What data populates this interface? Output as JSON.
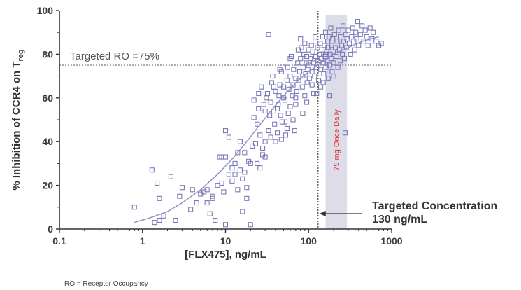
{
  "colors": {
    "marker": "#7b79b8",
    "fit_line": "#8c8ac4",
    "band": "#dcdde8",
    "band_label": "#e0302a",
    "axis": "#333333",
    "reference_line": "#777777"
  },
  "icons": {
    "arrow": "arrow-left-icon"
  },
  "chart_data": {
    "type": "scatter",
    "xscale": "log",
    "xlabel": "[FLX475], ng/mL",
    "ylabel_prefix": "% Inhibition of  CCR4 on T",
    "ylabel_sub": "reg",
    "xlim": [
      0.1,
      1000
    ],
    "ylim": [
      0,
      100
    ],
    "x_ticks": [
      0.1,
      1,
      10,
      100,
      1000
    ],
    "x_tick_labels": [
      "0.1",
      "1",
      "10",
      "100",
      "1000"
    ],
    "y_ticks": [
      0,
      20,
      40,
      60,
      80,
      100
    ],
    "y_tick_labels": [
      "0",
      "20",
      "40",
      "60",
      "80",
      "100"
    ],
    "grid": false,
    "reference_line": {
      "y": 75,
      "label": "Targeted RO =75%"
    },
    "target_concentration": {
      "x": 130,
      "label_line1": "Targeted Concentration",
      "label_line2": "130 ng/mL"
    },
    "dose_band": {
      "x_range": [
        160,
        290
      ],
      "label": "75 mg Once Daily"
    },
    "fit_curve": [
      [
        0.8,
        3
      ],
      [
        1.2,
        5
      ],
      [
        2,
        8
      ],
      [
        3,
        12
      ],
      [
        5,
        18
      ],
      [
        8,
        25
      ],
      [
        12,
        32
      ],
      [
        18,
        40
      ],
      [
        25,
        47
      ],
      [
        35,
        54
      ],
      [
        50,
        61
      ],
      [
        70,
        67
      ],
      [
        100,
        72
      ],
      [
        140,
        76
      ],
      [
        200,
        80
      ],
      [
        300,
        83
      ],
      [
        450,
        86
      ],
      [
        700,
        88
      ]
    ],
    "points": [
      [
        0.8,
        10
      ],
      [
        1.3,
        27
      ],
      [
        1.4,
        3
      ],
      [
        1.5,
        21
      ],
      [
        1.6,
        4
      ],
      [
        1.8,
        6
      ],
      [
        1.6,
        14
      ],
      [
        2.2,
        24
      ],
      [
        2.5,
        4
      ],
      [
        3.8,
        9
      ],
      [
        4.5,
        12
      ],
      [
        5.0,
        16
      ],
      [
        5.5,
        17
      ],
      [
        6.0,
        18
      ],
      [
        6.5,
        7
      ],
      [
        7.0,
        14
      ],
      [
        7.5,
        4
      ],
      [
        8.0,
        20
      ],
      [
        9.0,
        21
      ],
      [
        9.5,
        17
      ],
      [
        10,
        33
      ],
      [
        11,
        25
      ],
      [
        12,
        22
      ],
      [
        8.5,
        33
      ],
      [
        9,
        33
      ],
      [
        10,
        45
      ],
      [
        11,
        42
      ],
      [
        12,
        28
      ],
      [
        13,
        30
      ],
      [
        14,
        35
      ],
      [
        15,
        40
      ],
      [
        16,
        23
      ],
      [
        16,
        8
      ],
      [
        17,
        26
      ],
      [
        18,
        14
      ],
      [
        20,
        30
      ],
      [
        20,
        2
      ],
      [
        21,
        38
      ],
      [
        22,
        51
      ],
      [
        22,
        59
      ],
      [
        24,
        48
      ],
      [
        25,
        55
      ],
      [
        25,
        62
      ],
      [
        26,
        43
      ],
      [
        27,
        65
      ],
      [
        28,
        37
      ],
      [
        29,
        57
      ],
      [
        30,
        40
      ],
      [
        30,
        54
      ],
      [
        31,
        60
      ],
      [
        32,
        62
      ],
      [
        33,
        45
      ],
      [
        34,
        52
      ],
      [
        35,
        58
      ],
      [
        35,
        42
      ],
      [
        36,
        67
      ],
      [
        37,
        70
      ],
      [
        38,
        54
      ],
      [
        39,
        48
      ],
      [
        40,
        40
      ],
      [
        40,
        63
      ],
      [
        42,
        55
      ],
      [
        43,
        57
      ],
      [
        44,
        61
      ],
      [
        45,
        66
      ],
      [
        46,
        52
      ],
      [
        47,
        72
      ],
      [
        48,
        49
      ],
      [
        50,
        60
      ],
      [
        50,
        65
      ],
      [
        52,
        59
      ],
      [
        53,
        43
      ],
      [
        55,
        68
      ],
      [
        56,
        74
      ],
      [
        57,
        53
      ],
      [
        58,
        64
      ],
      [
        60,
        70
      ],
      [
        60,
        56
      ],
      [
        62,
        79
      ],
      [
        64,
        61
      ],
      [
        65,
        66
      ],
      [
        66,
        73
      ],
      [
        68,
        45
      ],
      [
        70,
        69
      ],
      [
        70,
        57
      ],
      [
        72,
        63
      ],
      [
        74,
        76
      ],
      [
        75,
        82
      ],
      [
        76,
        68
      ],
      [
        78,
        72
      ],
      [
        80,
        78
      ],
      [
        82,
        83
      ],
      [
        84,
        65
      ],
      [
        85,
        70
      ],
      [
        86,
        74
      ],
      [
        88,
        80
      ],
      [
        90,
        61
      ],
      [
        90,
        85
      ],
      [
        92,
        71
      ],
      [
        94,
        76
      ],
      [
        95,
        79
      ],
      [
        96,
        67
      ],
      [
        98,
        73
      ],
      [
        100,
        82
      ],
      [
        100,
        75
      ],
      [
        102,
        69
      ],
      [
        105,
        78
      ],
      [
        108,
        84
      ],
      [
        110,
        72
      ],
      [
        112,
        81
      ],
      [
        115,
        76
      ],
      [
        118,
        70
      ],
      [
        120,
        86
      ],
      [
        122,
        79
      ],
      [
        125,
        74
      ],
      [
        128,
        83
      ],
      [
        130,
        77
      ],
      [
        132,
        68
      ],
      [
        135,
        80
      ],
      [
        138,
        85
      ],
      [
        140,
        73
      ],
      [
        142,
        78
      ],
      [
        145,
        82
      ],
      [
        148,
        88
      ],
      [
        150,
        76
      ],
      [
        152,
        71
      ],
      [
        155,
        84
      ],
      [
        158,
        79
      ],
      [
        160,
        90
      ],
      [
        162,
        74
      ],
      [
        165,
        81
      ],
      [
        168,
        77
      ],
      [
        170,
        86
      ],
      [
        172,
        69
      ],
      [
        175,
        83
      ],
      [
        178,
        88
      ],
      [
        180,
        75
      ],
      [
        182,
        80
      ],
      [
        185,
        92
      ],
      [
        188,
        78
      ],
      [
        190,
        84
      ],
      [
        192,
        72
      ],
      [
        195,
        87
      ],
      [
        198,
        81
      ],
      [
        200,
        76
      ],
      [
        205,
        89
      ],
      [
        210,
        83
      ],
      [
        215,
        79
      ],
      [
        220,
        86
      ],
      [
        225,
        74
      ],
      [
        230,
        91
      ],
      [
        235,
        82
      ],
      [
        240,
        77
      ],
      [
        245,
        88
      ],
      [
        250,
        84
      ],
      [
        255,
        80
      ],
      [
        260,
        93
      ],
      [
        265,
        86
      ],
      [
        270,
        78
      ],
      [
        275,
        44
      ],
      [
        280,
        89
      ],
      [
        285,
        83
      ],
      [
        290,
        87
      ],
      [
        300,
        91
      ],
      [
        310,
        85
      ],
      [
        320,
        80
      ],
      [
        330,
        88
      ],
      [
        340,
        92
      ],
      [
        350,
        86
      ],
      [
        360,
        82
      ],
      [
        370,
        90
      ],
      [
        380,
        87
      ],
      [
        390,
        95
      ],
      [
        400,
        84
      ],
      [
        420,
        89
      ],
      [
        440,
        93
      ],
      [
        460,
        86
      ],
      [
        480,
        91
      ],
      [
        500,
        88
      ],
      [
        520,
        84
      ],
      [
        550,
        92
      ],
      [
        580,
        87
      ],
      [
        600,
        90
      ],
      [
        650,
        86
      ],
      [
        700,
        84
      ],
      [
        750,
        85
      ],
      [
        33,
        89
      ],
      [
        10,
        2
      ],
      [
        140,
        65
      ],
      [
        180,
        61
      ],
      [
        115,
        62
      ],
      [
        150,
        67
      ],
      [
        200,
        70
      ],
      [
        160,
        80
      ],
      [
        170,
        83
      ],
      [
        120,
        88
      ],
      [
        80,
        87
      ],
      [
        60,
        78
      ],
      [
        45,
        73
      ],
      [
        38,
        65
      ],
      [
        65,
        50
      ],
      [
        55,
        46
      ],
      [
        30,
        33
      ],
      [
        24,
        30
      ],
      [
        18,
        19
      ],
      [
        14,
        18
      ],
      [
        7,
        15
      ],
      [
        6,
        12
      ],
      [
        4,
        18
      ],
      [
        3,
        19
      ],
      [
        2.8,
        15
      ],
      [
        110,
        66
      ],
      [
        125,
        62
      ],
      [
        95,
        58
      ],
      [
        85,
        53
      ],
      [
        70,
        60
      ],
      [
        47,
        41
      ],
      [
        52,
        49
      ],
      [
        42,
        44
      ],
      [
        28,
        34
      ],
      [
        26,
        28
      ],
      [
        23,
        39
      ],
      [
        19,
        31
      ],
      [
        17,
        35
      ],
      [
        15,
        27
      ],
      [
        13,
        25
      ]
    ]
  },
  "footnote": "RO = Receptor Occupancy"
}
